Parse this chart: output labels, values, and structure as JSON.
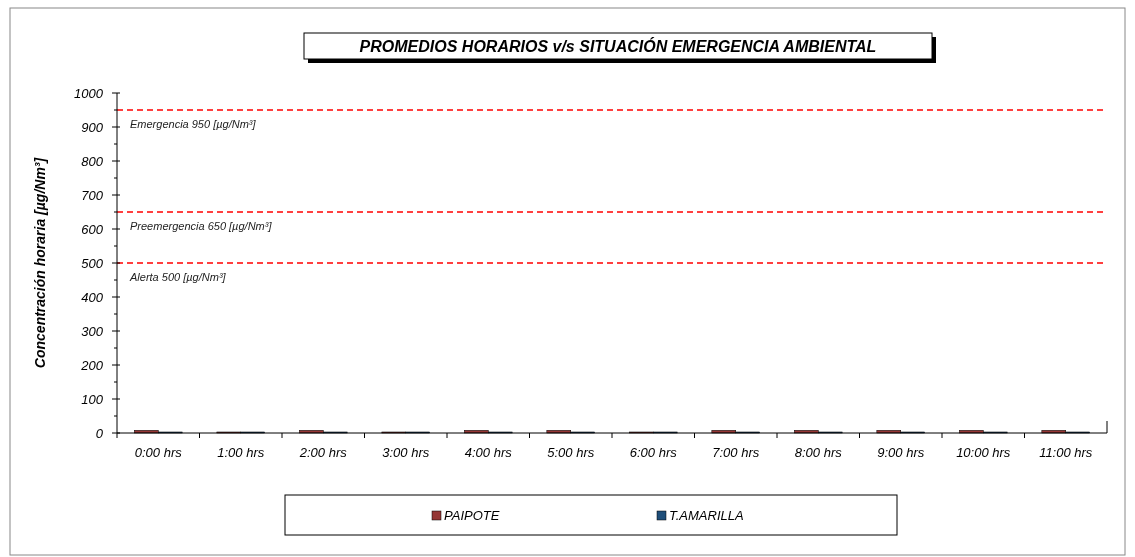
{
  "chart_data": {
    "type": "bar",
    "title": "PROMEDIOS HORARIOS v/s SITUACIÓN EMERGENCIA AMBIENTAL",
    "ylabel": "Concentración horaria [µg/Nm³]",
    "categories": [
      "0:00 hrs",
      "1:00 hrs",
      "2:00 hrs",
      "3:00 hrs",
      "4:00 hrs",
      "5:00 hrs",
      "6:00 hrs",
      "7:00 hrs",
      "8:00 hrs",
      "9:00 hrs",
      "10:00 hrs",
      "11:00 hrs"
    ],
    "series": [
      {
        "name": "PAIPOTE",
        "color": "#953735",
        "values": [
          8,
          3,
          8,
          3,
          8,
          8,
          3,
          8,
          8,
          8,
          8,
          8
        ]
      },
      {
        "name": "T.AMARILLA",
        "color": "#1f4e79",
        "values": [
          3,
          3,
          3,
          3,
          3,
          3,
          3,
          3,
          3,
          3,
          3,
          3
        ]
      }
    ],
    "ylim": [
      0,
      1000
    ],
    "yticks": [
      0,
      100,
      200,
      300,
      400,
      500,
      600,
      700,
      800,
      900,
      1000
    ],
    "ref_lines": [
      {
        "axis": "y",
        "value": 950,
        "label": "Emergencia 950 [µg/Nm³]",
        "color": "#ff0000",
        "line_style": "dashed"
      },
      {
        "axis": "y",
        "value": 650,
        "label": "Preemergencia 650 [µg/Nm³]",
        "color": "#ff0000",
        "line_style": "dashed"
      },
      {
        "axis": "y",
        "value": 500,
        "label": "Alerta 500 [µg/Nm³]",
        "color": "#ff0000",
        "line_style": "dashed"
      }
    ],
    "grid": false,
    "legend": "bottom"
  }
}
